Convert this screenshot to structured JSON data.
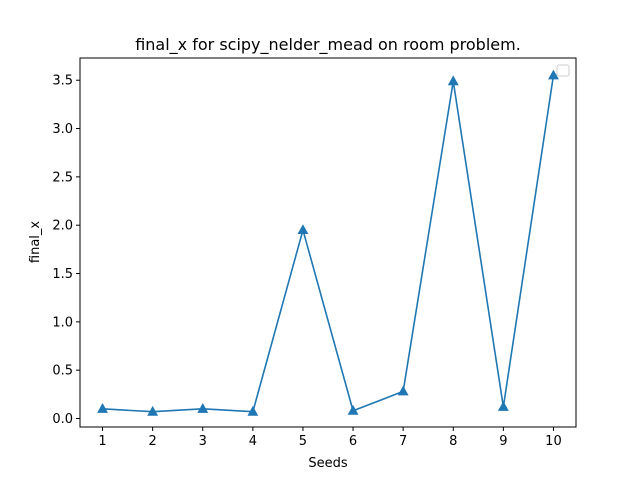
{
  "chart_data": {
    "type": "line",
    "title": "final_x for scipy_nelder_mead on room problem.",
    "xlabel": "Seeds",
    "ylabel": "final_x",
    "x": [
      1,
      2,
      3,
      4,
      5,
      6,
      7,
      8,
      9,
      10
    ],
    "series": [
      {
        "values": [
          0.1,
          0.07,
          0.1,
          0.07,
          1.95,
          0.08,
          0.28,
          3.49,
          0.12,
          3.55
        ],
        "color": "#1f77b4",
        "marker": "triangle-up"
      }
    ],
    "xlim": [
      0.55,
      10.45
    ],
    "ylim": [
      -0.088,
      3.73
    ],
    "xticks": [
      "1",
      "2",
      "3",
      "4",
      "5",
      "6",
      "7",
      "8",
      "9",
      "10"
    ],
    "yticks": [
      "0.0",
      "0.5",
      "1.0",
      "1.5",
      "2.0",
      "2.5",
      "3.0",
      "3.5"
    ],
    "ytick_values": [
      0,
      0.5,
      1.0,
      1.5,
      2.0,
      2.5,
      3.0,
      3.5
    ],
    "grid": false,
    "legend": "upper right (empty)"
  }
}
